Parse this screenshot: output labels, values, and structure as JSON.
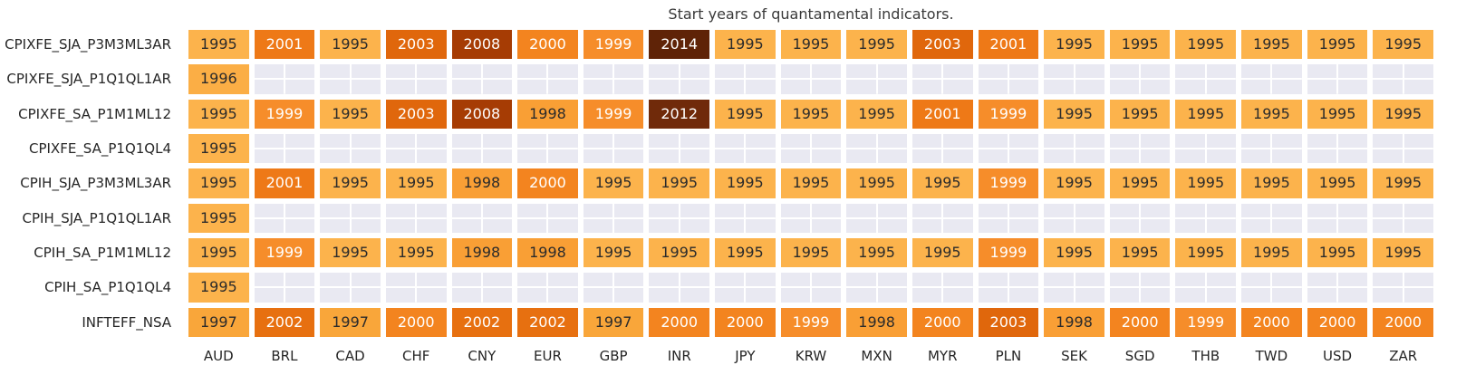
{
  "chart_data": {
    "type": "heatmap",
    "title": "Start years of quantamental indicators.",
    "columns": [
      "AUD",
      "BRL",
      "CAD",
      "CHF",
      "CNY",
      "EUR",
      "GBP",
      "INR",
      "JPY",
      "KRW",
      "MXN",
      "MYR",
      "PLN",
      "SEK",
      "SGD",
      "THB",
      "TWD",
      "USD",
      "ZAR"
    ],
    "rows": [
      "CPIXFE_SJA_P3M3ML3AR",
      "CPIXFE_SJA_P1Q1QL1AR",
      "CPIXFE_SA_P1M1ML12",
      "CPIXFE_SA_P1Q1QL4",
      "CPIH_SJA_P3M3ML3AR",
      "CPIH_SJA_P1Q1QL1AR",
      "CPIH_SA_P1M1ML12",
      "CPIH_SA_P1Q1QL4",
      "INFTEFF_NSA"
    ],
    "values": [
      [
        1995,
        2001,
        1995,
        2003,
        2008,
        2000,
        1999,
        2014,
        1995,
        1995,
        1995,
        2003,
        2001,
        1995,
        1995,
        1995,
        1995,
        1995,
        1995
      ],
      [
        1996,
        null,
        null,
        null,
        null,
        null,
        null,
        null,
        null,
        null,
        null,
        null,
        null,
        null,
        null,
        null,
        null,
        null,
        null
      ],
      [
        1995,
        1999,
        1995,
        2003,
        2008,
        1998,
        1999,
        2012,
        1995,
        1995,
        1995,
        2001,
        1999,
        1995,
        1995,
        1995,
        1995,
        1995,
        1995
      ],
      [
        1995,
        null,
        null,
        null,
        null,
        null,
        null,
        null,
        null,
        null,
        null,
        null,
        null,
        null,
        null,
        null,
        null,
        null,
        null
      ],
      [
        1995,
        2001,
        1995,
        1995,
        1998,
        2000,
        1995,
        1995,
        1995,
        1995,
        1995,
        1995,
        1999,
        1995,
        1995,
        1995,
        1995,
        1995,
        1995
      ],
      [
        1995,
        null,
        null,
        null,
        null,
        null,
        null,
        null,
        null,
        null,
        null,
        null,
        null,
        null,
        null,
        null,
        null,
        null,
        null
      ],
      [
        1995,
        1999,
        1995,
        1995,
        1998,
        1998,
        1995,
        1995,
        1995,
        1995,
        1995,
        1995,
        1999,
        1995,
        1995,
        1995,
        1995,
        1995,
        1995
      ],
      [
        1995,
        null,
        null,
        null,
        null,
        null,
        null,
        null,
        null,
        null,
        null,
        null,
        null,
        null,
        null,
        null,
        null,
        null,
        null
      ],
      [
        1997,
        2002,
        1997,
        2000,
        2002,
        2002,
        1997,
        2000,
        2000,
        1999,
        1998,
        2000,
        2003,
        1998,
        2000,
        1999,
        2000,
        2000,
        2000
      ]
    ],
    "value_range": [
      1995,
      2014
    ],
    "colormap": "Oranges",
    "legend": "none",
    "grid": "on",
    "empty_color": "#e9e9f2",
    "grid_line_color": "#ffffff",
    "year_colors": {
      "1995": {
        "bg": "#fcb34c",
        "text": "#2b2b2b"
      },
      "1996": {
        "bg": "#fbae45",
        "text": "#2b2b2b"
      },
      "1997": {
        "bg": "#f9a63a",
        "text": "#2b2b2b"
      },
      "1998": {
        "bg": "#f99f35",
        "text": "#2b2b2b"
      },
      "1999": {
        "bg": "#f68d2a",
        "text": "#ffffff"
      },
      "2000": {
        "bg": "#f3841f",
        "text": "#ffffff"
      },
      "2001": {
        "bg": "#ee7917",
        "text": "#ffffff"
      },
      "2002": {
        "bg": "#e77010",
        "text": "#ffffff"
      },
      "2003": {
        "bg": "#e0670c",
        "text": "#ffffff"
      },
      "2008": {
        "bg": "#a63c04",
        "text": "#ffffff"
      },
      "2012": {
        "bg": "#702a0a",
        "text": "#ffffff"
      },
      "2014": {
        "bg": "#5f2307",
        "text": "#ffffff"
      }
    }
  }
}
